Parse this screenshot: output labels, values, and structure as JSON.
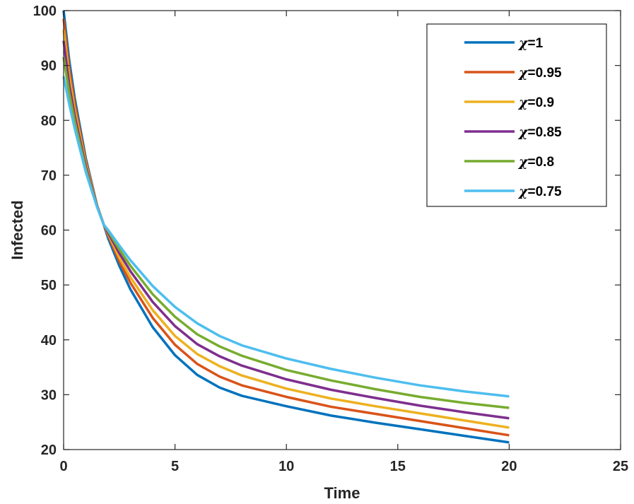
{
  "chart_data": {
    "type": "line",
    "title": "",
    "xlabel": "Time",
    "ylabel": "Infected",
    "xlim": [
      0,
      25
    ],
    "ylim": [
      20,
      100
    ],
    "xticks": [
      "0",
      "5",
      "10",
      "15",
      "20",
      "25"
    ],
    "yticks": [
      "20",
      "30",
      "40",
      "50",
      "60",
      "70",
      "80",
      "90",
      "100"
    ],
    "grid": false,
    "legend_position": "top-right",
    "x": [
      0,
      0.25,
      0.5,
      1,
      1.5,
      1.8,
      2,
      2.5,
      3,
      4,
      5,
      6,
      7,
      8,
      10,
      12,
      14,
      16,
      18,
      20
    ],
    "series": [
      {
        "name": "=1",
        "symbol": "χ",
        "color": "#0072BD",
        "values": [
          100,
          91,
          84,
          73,
          64.5,
          61,
          58.5,
          53.5,
          49.2,
          42.3,
          37.2,
          33.6,
          31.3,
          29.8,
          27.9,
          26.2,
          24.9,
          23.7,
          22.5,
          21.3
        ]
      },
      {
        "name": "=0.95",
        "symbol": "χ",
        "color": "#D95319",
        "values": [
          98.5,
          89.5,
          83,
          72.5,
          64.5,
          61,
          59,
          54.3,
          50.4,
          44,
          39.1,
          35.6,
          33.3,
          31.7,
          29.6,
          27.8,
          26.5,
          25.2,
          23.9,
          22.6
        ]
      },
      {
        "name": "=0.9",
        "symbol": "χ",
        "color": "#EDB120",
        "values": [
          96.5,
          88,
          81.8,
          72,
          64.4,
          61,
          59.3,
          55,
          51.4,
          45.4,
          40.7,
          37.4,
          35.2,
          33.5,
          31.1,
          29.3,
          27.9,
          26.6,
          25.3,
          24
        ]
      },
      {
        "name": "=0.85",
        "symbol": "χ",
        "color": "#7E2F8E",
        "values": [
          94.5,
          86.5,
          80.8,
          71.5,
          64.4,
          61,
          59.5,
          55.8,
          52.5,
          46.9,
          42.5,
          39.2,
          37,
          35.3,
          32.8,
          30.9,
          29.4,
          28,
          26.8,
          25.7
        ]
      },
      {
        "name": "=0.8",
        "symbol": "χ",
        "color": "#77AC30",
        "values": [
          91.5,
          85,
          79.8,
          71,
          64.3,
          61,
          59.8,
          56.5,
          53.5,
          48.3,
          44.2,
          41,
          38.8,
          37.1,
          34.5,
          32.6,
          31,
          29.6,
          28.5,
          27.6
        ]
      },
      {
        "name": "=0.75",
        "symbol": "χ",
        "color": "#4DBEEE",
        "values": [
          88,
          83,
          78.5,
          70.5,
          64.2,
          61,
          60,
          57.2,
          54.5,
          49.8,
          46,
          43,
          40.7,
          39,
          36.6,
          34.7,
          33.1,
          31.7,
          30.6,
          29.7
        ]
      }
    ]
  }
}
